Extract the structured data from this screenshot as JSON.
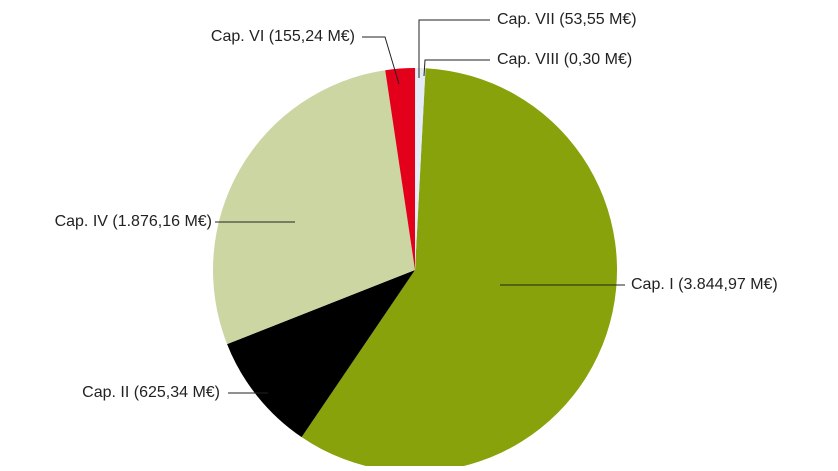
{
  "chart_data": {
    "type": "pie",
    "categories": [
      "Cap. I (3.844,97 M€)",
      "Cap. II (625,34 M€)",
      "Cap. IV (1.876,16 M€)",
      "Cap. VI (155,24 M€)",
      "Cap. VII (53,55 M€)",
      "Cap. VIII (0,30 M€)"
    ],
    "values": [
      3844.97,
      625.34,
      1876.16,
      155.24,
      53.55,
      0.3
    ],
    "colors": [
      "#88a20b",
      "#000000",
      "#ccd6a3",
      "#e3001b",
      "#e4ecf7",
      "#7d8a99"
    ]
  }
}
